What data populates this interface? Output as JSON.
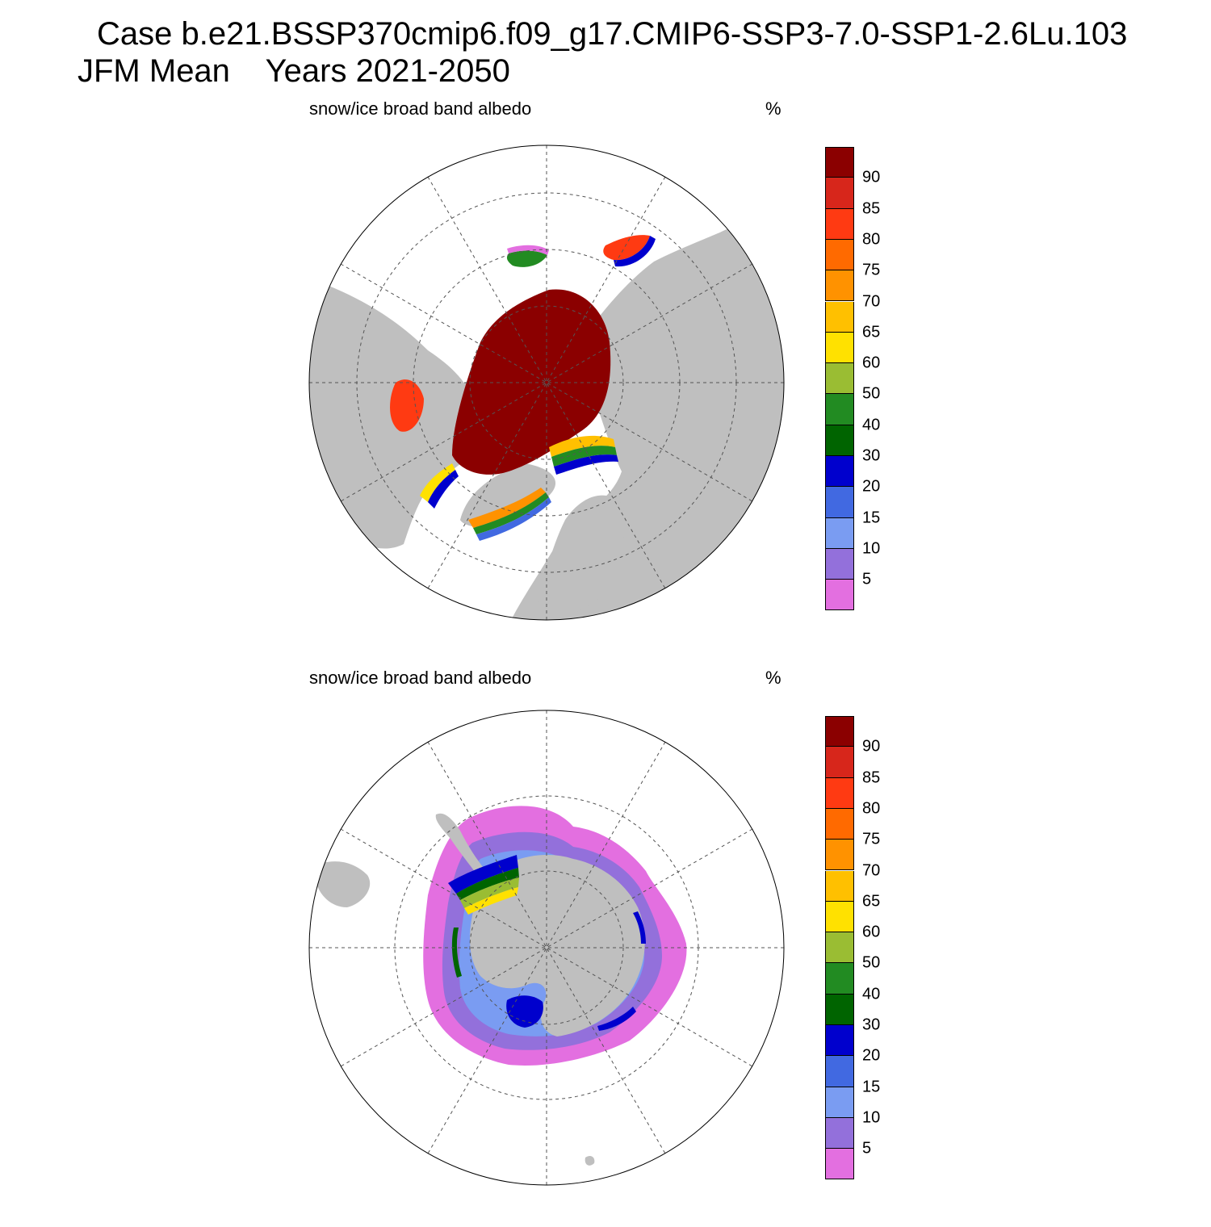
{
  "header": {
    "line1": "Case b.e21.BSSP370cmip6.f09_g17.CMIP6-SSP3-7.0-SSP1-2.6Lu.103",
    "line2_a": "JFM Mean",
    "line2_b": "Years 2021-2050"
  },
  "panels": [
    {
      "id": "north",
      "variable": "snow/ice broad band albedo",
      "unit": "%"
    },
    {
      "id": "south",
      "variable": "snow/ice broad band albedo",
      "unit": "%"
    }
  ],
  "colorbar": {
    "levels": [
      "90",
      "85",
      "80",
      "75",
      "70",
      "65",
      "60",
      "50",
      "40",
      "30",
      "20",
      "15",
      "10",
      "5"
    ],
    "colors": [
      "#8b0000",
      "#d7261b",
      "#ff3a12",
      "#ff6a00",
      "#ff9200",
      "#ffc000",
      "#ffe100",
      "#9abd33",
      "#228b22",
      "#006400",
      "#0000cd",
      "#4169e1",
      "#7a9cf2",
      "#9370db",
      "#e36fe0"
    ]
  },
  "map_colors": {
    "land": "#bfbfbf",
    "ocean": "#ffffff",
    "grid": "#555555"
  }
}
